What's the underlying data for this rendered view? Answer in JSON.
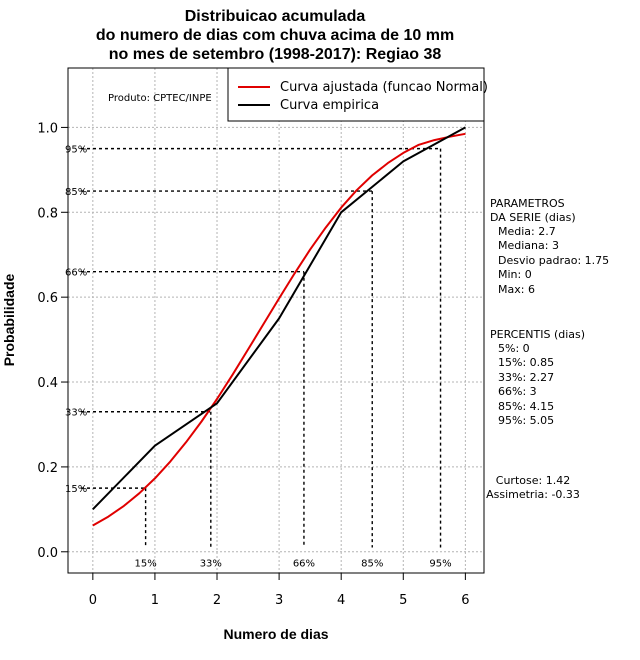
{
  "chart_data": {
    "type": "line",
    "title": [
      "Distribuicao acumulada",
      "do numero de dias com chuva acima de 10 mm",
      "no mes de setembro (1998-2017): Regiao 38"
    ],
    "xlabel": "Numero de dias",
    "ylabel": "Probabilidade",
    "xlim": [
      -0.4,
      6.3
    ],
    "ylim": [
      -0.05,
      1.14
    ],
    "xticks": [
      0,
      1,
      2,
      3,
      4,
      5,
      6
    ],
    "yticks": [
      0.0,
      0.2,
      0.4,
      0.6,
      0.8,
      1.0
    ],
    "ytick_labels": [
      "0.0",
      "0.2",
      "0.4",
      "0.6",
      "0.8",
      "1.0"
    ],
    "grid": true,
    "legend_position": "top-right",
    "producer_note": "Produto: CPTEC/INPE",
    "series": [
      {
        "name": "Curva ajustada (funcao Normal)",
        "color": "#e00000",
        "x": [
          0,
          0.25,
          0.5,
          0.75,
          1.0,
          1.25,
          1.5,
          1.75,
          2.0,
          2.25,
          2.5,
          2.75,
          3.0,
          3.25,
          3.5,
          3.75,
          4.0,
          4.25,
          4.5,
          4.75,
          5.0,
          5.25,
          5.5,
          5.75,
          6.0
        ],
        "values": [
          0.062,
          0.083,
          0.108,
          0.138,
          0.173,
          0.213,
          0.258,
          0.307,
          0.36,
          0.417,
          0.477,
          0.537,
          0.597,
          0.656,
          0.712,
          0.764,
          0.811,
          0.852,
          0.887,
          0.916,
          0.94,
          0.959,
          0.97,
          0.978,
          0.985
        ]
      },
      {
        "name": "Curva empirica",
        "color": "#000000",
        "x": [
          0,
          1,
          2,
          3,
          4,
          5,
          6
        ],
        "values": [
          0.1,
          0.25,
          0.35,
          0.55,
          0.8,
          0.92,
          1.0
        ]
      }
    ],
    "percentile_lines": [
      {
        "label": "15%",
        "x": 0.85,
        "y": 0.15
      },
      {
        "label": "33%",
        "x": 1.9,
        "y": 0.33
      },
      {
        "label": "66%",
        "x": 3.4,
        "y": 0.66
      },
      {
        "label": "85%",
        "x": 4.5,
        "y": 0.85
      },
      {
        "label": "95%",
        "x": 5.6,
        "y": 0.95
      }
    ],
    "side_panel": {
      "params_title": [
        "PARAMETROS",
        "DA SERIE (dias)"
      ],
      "params": [
        "Media: 2.7",
        "Mediana: 3",
        "Desvio padrao: 1.75",
        "Min: 0",
        "Max: 6"
      ],
      "percentis_title": "PERCENTIS (dias)",
      "percentis": [
        "5%: 0",
        "15%: 0.85",
        "33%: 2.27",
        "66%: 3",
        "85%: 4.15",
        "95%: 5.05"
      ],
      "extra": [
        "Curtose: 1.42",
        "Assimetria: -0.33"
      ]
    }
  }
}
